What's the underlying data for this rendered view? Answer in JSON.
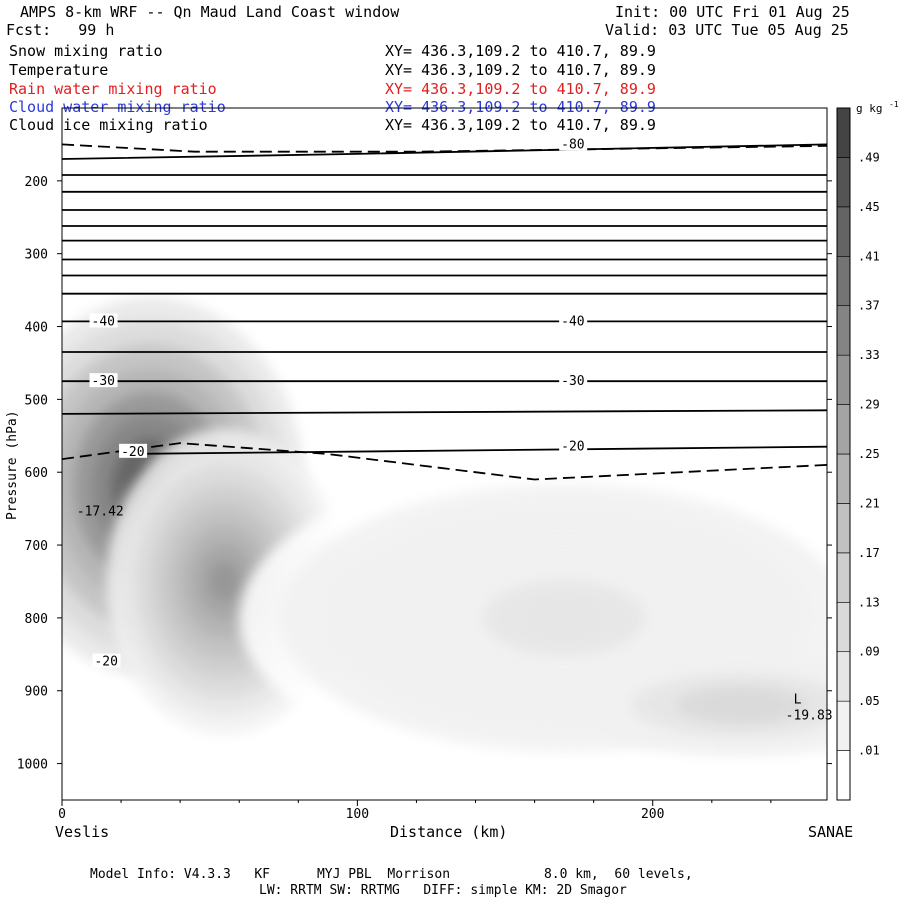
{
  "header": {
    "title": "AMPS 8-km WRF -- Qn Maud Land Coast window",
    "fcst": "Fcst:   99 h",
    "init": "Init: 00 UTC Fri 01 Aug 25",
    "valid": "Valid: 03 UTC Tue 05 Aug 25"
  },
  "fields": [
    {
      "name": "Snow mixing ratio",
      "xy": "XY= 436.3,109.2 to 410.7, 89.9",
      "color": "#000000"
    },
    {
      "name": "Temperature",
      "xy": "XY= 436.3,109.2 to 410.7, 89.9",
      "color": "#000000"
    },
    {
      "name": "Rain water mixing ratio",
      "xy": "XY= 436.3,109.2 to 410.7, 89.9",
      "color": "#e02020"
    },
    {
      "name": "Cloud water mixing ratio",
      "xy": "XY= 436.3,109.2 to 410.7, 89.9",
      "color": "#2a3ad8"
    },
    {
      "name": "Cloud ice mixing ratio",
      "xy": "XY= 436.3,109.2 to 410.7, 89.9",
      "color": "#000000"
    }
  ],
  "footer": {
    "model_info": "Model Info: V4.3.3   KF      MYJ PBL  Morrison            8.0 km,  60 levels,",
    "model_info2": "LW: RRTM SW: RRTMG   DIFF: simple KM: 2D Smagor"
  },
  "chart_data": {
    "type": "heatmap",
    "xlabel": "Distance (km)",
    "ylabel": "Pressure (hPa)",
    "x_ticks": [
      0,
      100,
      200
    ],
    "y_ticks": [
      200,
      300,
      400,
      500,
      600,
      700,
      800,
      900,
      1000
    ],
    "xlim": [
      0,
      259
    ],
    "ylim": [
      100,
      1050
    ],
    "endpoints": {
      "left": "Veslis",
      "right": "SANAE"
    },
    "colorbar": {
      "unit": "g kg",
      "unit_sup": "-1",
      "levels": [
        ".01",
        ".05",
        ".09",
        ".13",
        ".17",
        ".21",
        ".25",
        ".29",
        ".33",
        ".37",
        ".41",
        ".45",
        ".49"
      ],
      "shades": [
        "#ffffff",
        "#f1f1f1",
        "#e6e6e6",
        "#dadada",
        "#cecece",
        "#c1c1c1",
        "#b3b3b3",
        "#a4a4a4",
        "#949494",
        "#848484",
        "#747474",
        "#646464",
        "#545454",
        "#444444"
      ]
    },
    "snow_blobs": [
      {
        "x": 30,
        "p": 620,
        "rx": 52,
        "rp": 260,
        "value": 0.49
      },
      {
        "x": 55,
        "p": 750,
        "rx": 40,
        "rp": 210,
        "value": 0.3
      },
      {
        "x": 170,
        "p": 800,
        "rx": 110,
        "rp": 210,
        "value": 0.06
      },
      {
        "x": 230,
        "p": 920,
        "rx": 60,
        "rp": 70,
        "value": 0.12
      }
    ],
    "temperature_labels": [
      {
        "text": "-80",
        "x": 169,
        "p": 150
      },
      {
        "text": "-40",
        "x": 10,
        "p": 393
      },
      {
        "text": "-40",
        "x": 169,
        "p": 393
      },
      {
        "text": "-30",
        "x": 10,
        "p": 475
      },
      {
        "text": "-30",
        "x": 169,
        "p": 475
      },
      {
        "text": "-20",
        "x": 20,
        "p": 572
      },
      {
        "text": "-20",
        "x": 169,
        "p": 565
      },
      {
        "text": "-20",
        "x": 11,
        "p": 860
      }
    ],
    "temperature_lines": [
      {
        "style": "solid",
        "points": [
          [
            0,
            170
          ],
          [
            100,
            163
          ],
          [
            259,
            150
          ]
        ]
      },
      {
        "style": "solid",
        "points": [
          [
            0,
            192
          ],
          [
            259,
            192
          ]
        ]
      },
      {
        "style": "solid",
        "points": [
          [
            0,
            215
          ],
          [
            259,
            215
          ]
        ]
      },
      {
        "style": "solid",
        "points": [
          [
            0,
            240
          ],
          [
            259,
            240
          ]
        ]
      },
      {
        "style": "solid",
        "points": [
          [
            0,
            262
          ],
          [
            259,
            262
          ]
        ]
      },
      {
        "style": "solid",
        "points": [
          [
            0,
            282
          ],
          [
            259,
            282
          ]
        ]
      },
      {
        "style": "solid",
        "points": [
          [
            0,
            308
          ],
          [
            259,
            308
          ]
        ]
      },
      {
        "style": "solid",
        "points": [
          [
            0,
            330
          ],
          [
            259,
            330
          ]
        ]
      },
      {
        "style": "solid",
        "points": [
          [
            0,
            355
          ],
          [
            259,
            355
          ]
        ]
      },
      {
        "style": "solid",
        "points": [
          [
            0,
            393
          ],
          [
            259,
            393
          ]
        ]
      },
      {
        "style": "solid",
        "points": [
          [
            0,
            435
          ],
          [
            259,
            435
          ]
        ]
      },
      {
        "style": "solid",
        "points": [
          [
            0,
            475
          ],
          [
            259,
            475
          ]
        ]
      },
      {
        "style": "solid",
        "points": [
          [
            0,
            520
          ],
          [
            259,
            515
          ]
        ]
      },
      {
        "style": "solid",
        "points": [
          [
            20,
            575
          ],
          [
            259,
            565
          ]
        ]
      },
      {
        "style": "dashed",
        "points": [
          [
            0,
            150
          ],
          [
            45,
            160
          ],
          [
            120,
            160
          ],
          [
            259,
            152
          ]
        ]
      },
      {
        "style": "dashed",
        "points": [
          [
            0,
            582
          ],
          [
            40,
            560
          ],
          [
            90,
            575
          ],
          [
            160,
            610
          ],
          [
            259,
            590
          ]
        ]
      }
    ],
    "extrema": [
      {
        "label": "L",
        "value": "-19.83",
        "x": 245,
        "p": 920
      },
      {
        "label": "",
        "value": "-17.42",
        "x": 5,
        "p": 640
      }
    ]
  }
}
